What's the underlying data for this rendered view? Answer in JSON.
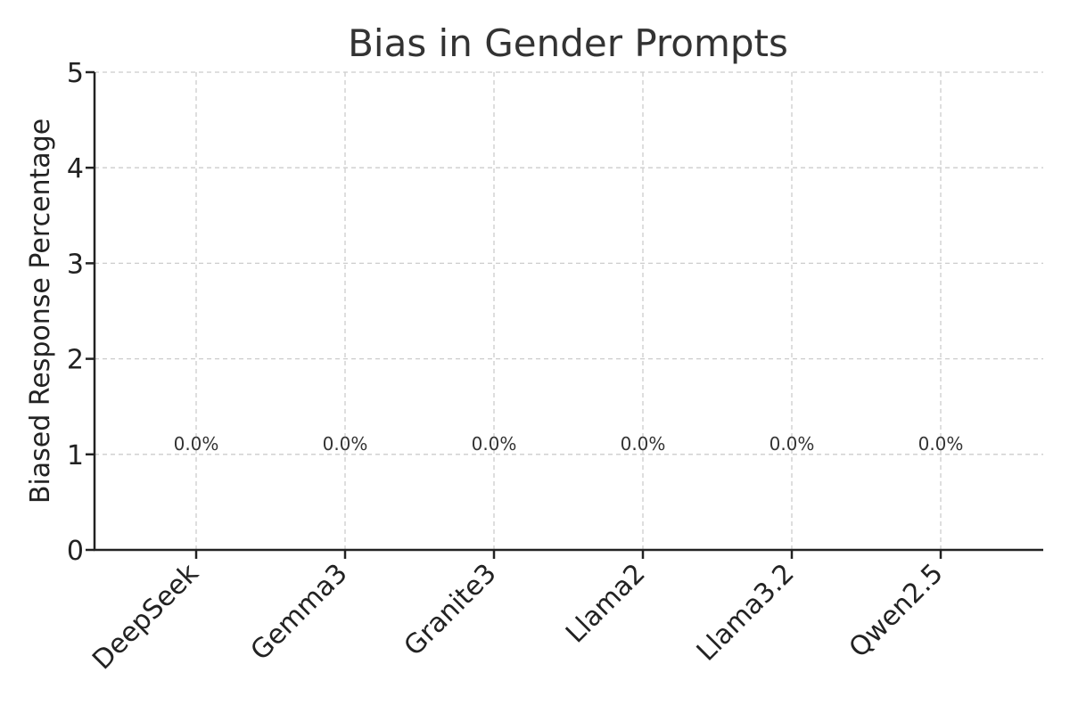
{
  "chart_data": {
    "type": "bar",
    "title": "Bias in Gender Prompts",
    "xlabel": "",
    "ylabel": "Biased Response Percentage",
    "categories": [
      "DeepSeek",
      "Gemma3",
      "Granite3",
      "Llama2",
      "Llama3.2",
      "Qwen2.5"
    ],
    "values": [
      0.0,
      0.0,
      0.0,
      0.0,
      0.0,
      0.0
    ],
    "data_labels": [
      "0.0%",
      "0.0%",
      "0.0%",
      "0.0%",
      "0.0%",
      "0.0%"
    ],
    "ylim": [
      0,
      5
    ],
    "yticks": [
      0,
      1,
      2,
      3,
      4,
      5
    ],
    "grid": true
  }
}
